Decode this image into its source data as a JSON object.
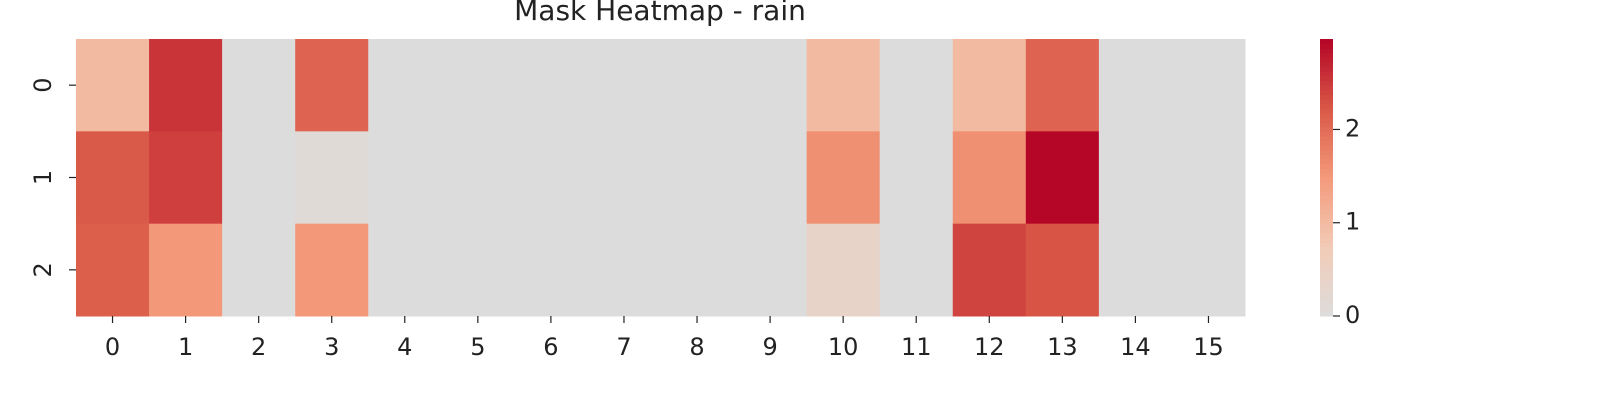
{
  "chart_data": {
    "type": "heatmap",
    "title": "Mask Heatmap - rain",
    "x_categories": [
      "0",
      "1",
      "2",
      "3",
      "4",
      "5",
      "6",
      "7",
      "8",
      "9",
      "10",
      "11",
      "12",
      "13",
      "14",
      "15"
    ],
    "y_categories": [
      "0",
      "1",
      "2"
    ],
    "values": [
      [
        1.0,
        2.55,
        0,
        2.1,
        0,
        0,
        0,
        0,
        0,
        0,
        1.0,
        0,
        1.0,
        2.1,
        0,
        0
      ],
      [
        2.2,
        2.45,
        0,
        0.1,
        0,
        0,
        0,
        0,
        0,
        0,
        1.6,
        0,
        1.6,
        2.95,
        0,
        0
      ],
      [
        2.15,
        1.5,
        0,
        1.5,
        0,
        0,
        0,
        0,
        0,
        0,
        0.4,
        0,
        2.4,
        2.25,
        0,
        0
      ]
    ],
    "clim": [
      0,
      2.97
    ],
    "cticks": [
      0,
      1,
      2
    ],
    "colorscale": [
      "#dddcdc",
      "#f2cbb7",
      "#f49a7b",
      "#d95847",
      "#b40426"
    ]
  }
}
